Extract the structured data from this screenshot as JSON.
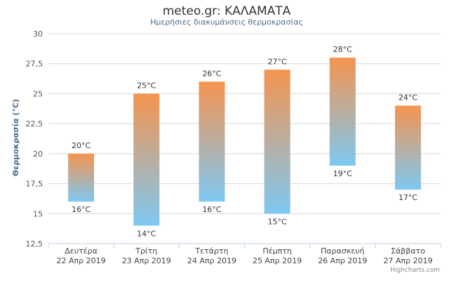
{
  "chart_data": {
    "type": "columnrange",
    "title": "meteo.gr: ΚΑΛΑΜΑΤΑ",
    "subtitle": "Ημερήσιες διακυμάνσεις θερμοκρασίας",
    "ylabel": "Θερμοκρασία (°C)",
    "xlabel": "",
    "ylim": [
      12.5,
      30
    ],
    "yticks": [
      "12,5",
      "15",
      "17,5",
      "20",
      "22,5",
      "25",
      "27,5",
      "30"
    ],
    "ytick_values": [
      12.5,
      15,
      17.5,
      20,
      22.5,
      25,
      27.5,
      30
    ],
    "grid": true,
    "legend": "none",
    "categories": [
      [
        "Δευτέρα",
        "22 Απρ 2019"
      ],
      [
        "Τρίτη",
        "23 Απρ 2019"
      ],
      [
        "Τετάρτη",
        "24 Απρ 2019"
      ],
      [
        "Πέμπτη",
        "25 Απρ 2019"
      ],
      [
        "Παρασκευή",
        "26 Απρ 2019"
      ],
      [
        "Σάββατο",
        "27 Απρ 2019"
      ]
    ],
    "lows": [
      16,
      14,
      16,
      15,
      19,
      17
    ],
    "highs": [
      20,
      25,
      26,
      27,
      28,
      24
    ],
    "low_labels": [
      "16°C",
      "14°C",
      "16°C",
      "15°C",
      "19°C",
      "17°C"
    ],
    "high_labels": [
      "20°C",
      "25°C",
      "26°C",
      "27°C",
      "28°C",
      "24°C"
    ],
    "colors": {
      "warm": "#f5944f",
      "cold": "#7ec8f2",
      "grid": "#d8d8d8",
      "text": "#333333",
      "axis_title": "#4a6c8f",
      "subtitle": "#4a6c8f"
    }
  },
  "credits": "Highcharts.com"
}
